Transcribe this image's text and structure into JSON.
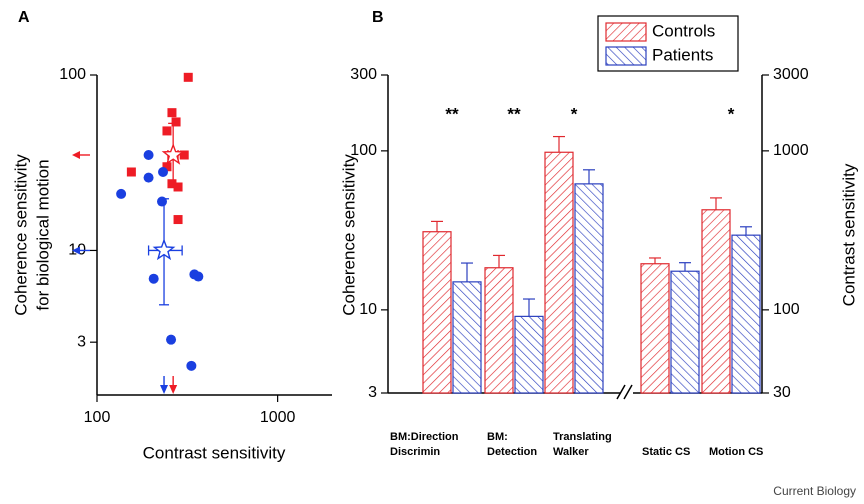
{
  "chart_data": [
    {
      "type": "scatter",
      "panel_label": "A",
      "xlabel": "Contrast sensitivity",
      "ylabel": [
        "Coherence sensitivity",
        "for biological motion"
      ],
      "log_x": true,
      "log_y": true,
      "xlim": [
        100,
        2000
      ],
      "ylim": [
        1.5,
        100
      ],
      "xticks": [
        100,
        1000
      ],
      "yticks": [
        3,
        10,
        100
      ],
      "series": [
        {
          "color": "#ee1c25",
          "marker": "square",
          "x": [
            320,
            260,
            274,
            244,
            304,
            155,
            244,
            260,
            281,
            281
          ],
          "y": [
            97,
            61,
            54,
            48,
            35,
            28,
            30,
            24,
            23,
            15
          ],
          "mean": {
            "x": 264,
            "y": 35,
            "xlow": 247,
            "xhigh": 281,
            "ylow": 24,
            "yhigh": 53
          }
        },
        {
          "color": "#1a3fe0",
          "marker": "circle",
          "x": [
            193,
            193,
            136,
            232,
            229,
            206,
            346,
            364,
            257,
            333
          ],
          "y": [
            35,
            26,
            21,
            28,
            19,
            6.9,
            7.3,
            7.1,
            3.1,
            2.2
          ],
          "mean": {
            "x": 235,
            "y": 10,
            "xlow": 193,
            "xhigh": 296,
            "ylow": 4.9,
            "yhigh": 19.7
          }
        }
      ]
    },
    {
      "type": "bar",
      "panel_label": "B",
      "ylabel": "Coherence sensitivity",
      "y2label": "Contrast sensitivity",
      "log_y": true,
      "ylim": [
        3,
        300
      ],
      "yticks": [
        3,
        10,
        100,
        300
      ],
      "y2lim": [
        30,
        3000
      ],
      "y2ticks": [
        30,
        100,
        1000,
        3000
      ],
      "categories": [
        "BM:Direction\nDiscrimin",
        "BM:\nDetection",
        "Translating\nWalker",
        "Static CS",
        "Motion CS"
      ],
      "significance": [
        "**",
        "**",
        "*",
        null,
        "*"
      ],
      "legend": "top-right",
      "series": [
        {
          "name": "Controls",
          "color": "#e0282e",
          "values": [
            31,
            18.4,
            98,
            null,
            null
          ],
          "errors": [
            5,
            3.6,
            25,
            null,
            null
          ],
          "y2_values": [
            null,
            null,
            null,
            195,
            426
          ],
          "y2_errors": [
            null,
            null,
            null,
            17,
            80
          ]
        },
        {
          "name": "Patients",
          "color": "#2b3fbf",
          "values": [
            15,
            9.1,
            62,
            null,
            null
          ],
          "errors": [
            4.7,
            2.6,
            14,
            null,
            null
          ],
          "y2_values": [
            null,
            null,
            null,
            175,
            295
          ],
          "y2_errors": [
            null,
            null,
            null,
            23,
            38
          ]
        }
      ]
    }
  ],
  "credit": "Current Biology"
}
